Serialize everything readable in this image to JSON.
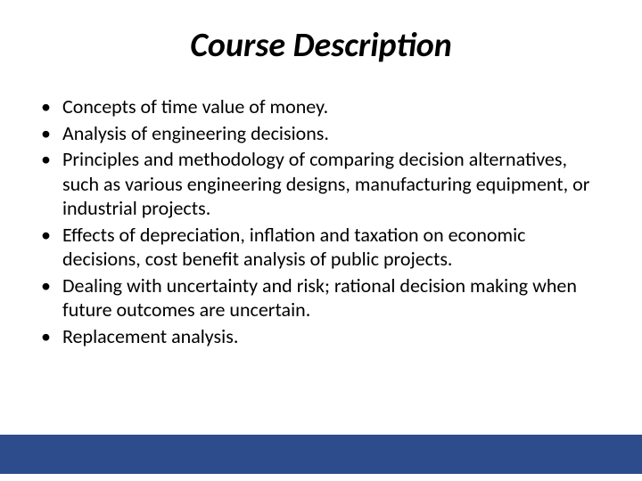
{
  "slide": {
    "title": "Course Description",
    "bullets": [
      "Concepts of time value of money.",
      "Analysis of engineering decisions.",
      "Principles and methodology of comparing decision alternatives, such as various engineering designs, manufacturing equipment, or industrial projects.",
      "Effects of depreciation, inflation and taxation on economic decisions, cost benefit analysis of public projects.",
      "Dealing with uncertainty and risk; rational decision making when future outcomes are uncertain.",
      "Replacement analysis."
    ]
  },
  "style": {
    "title_fontsize": 38,
    "title_color": "#000000",
    "body_fontsize": 22,
    "body_color": "#000000",
    "background_color": "#ffffff",
    "footer_color": "#2c4c8c"
  }
}
